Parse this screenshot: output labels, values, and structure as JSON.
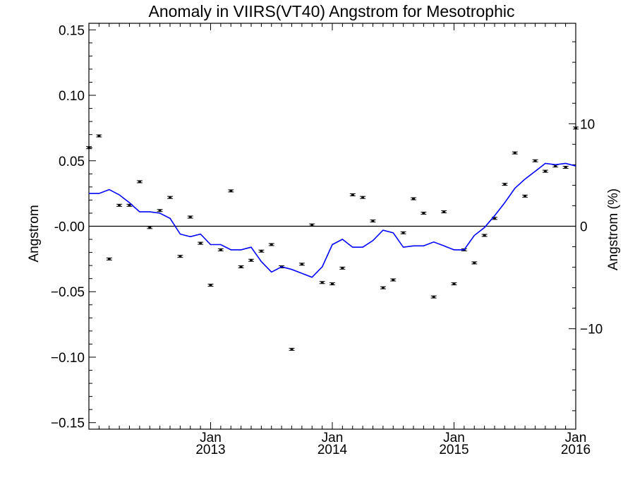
{
  "chart_data": {
    "type": "scatter",
    "title": "Anomaly in VIIRS(VT40) Angstrom for Mesotrophic",
    "ylabel": "Angstrom",
    "ylabel_right": "Angstrom (%)",
    "ylim": [
      -0.155,
      0.155
    ],
    "ylim_right": [
      -19.8,
      19.8
    ],
    "xlim": [
      2012.0,
      2016.0
    ],
    "yticks": [
      {
        "value": 0.15,
        "label": "0.15"
      },
      {
        "value": 0.1,
        "label": "0.10"
      },
      {
        "value": 0.05,
        "label": "0.05"
      },
      {
        "value": 0.0,
        "label": "-0.00"
      },
      {
        "value": -0.05,
        "label": "−0.05"
      },
      {
        "value": -0.1,
        "label": "−0.10"
      },
      {
        "value": -0.15,
        "label": "−0.15"
      }
    ],
    "yticks_right": [
      {
        "value": 10,
        "label": "10"
      },
      {
        "value": 0,
        "label": "0"
      },
      {
        "value": -10,
        "label": "−10"
      }
    ],
    "xticks": [
      {
        "value": 2013.0,
        "month": "Jan",
        "year": "2013"
      },
      {
        "value": 2014.0,
        "month": "Jan",
        "year": "2014"
      },
      {
        "value": 2015.0,
        "month": "Jan",
        "year": "2015"
      },
      {
        "value": 2016.0,
        "month": "Jan",
        "year": "2016"
      }
    ],
    "zero_line": true,
    "series": [
      {
        "kind": "points",
        "color": "#000000",
        "x": [
          2012.0,
          2012.083,
          2012.167,
          2012.25,
          2012.333,
          2012.417,
          2012.5,
          2012.583,
          2012.667,
          2012.75,
          2012.833,
          2012.917,
          2013.0,
          2013.083,
          2013.167,
          2013.25,
          2013.333,
          2013.417,
          2013.5,
          2013.583,
          2013.667,
          2013.75,
          2013.833,
          2013.917,
          2014.0,
          2014.083,
          2014.167,
          2014.25,
          2014.333,
          2014.417,
          2014.5,
          2014.583,
          2014.667,
          2014.75,
          2014.833,
          2014.917,
          2015.0,
          2015.083,
          2015.167,
          2015.25,
          2015.333,
          2015.417,
          2015.5,
          2015.583,
          2015.667,
          2015.75,
          2015.833,
          2015.917,
          2016.0
        ],
        "y": [
          0.06,
          0.069,
          -0.025,
          0.016,
          0.016,
          0.034,
          -0.001,
          0.012,
          0.022,
          -0.023,
          0.007,
          -0.013,
          -0.045,
          -0.018,
          0.027,
          -0.031,
          -0.026,
          -0.019,
          -0.014,
          -0.031,
          -0.094,
          -0.029,
          0.001,
          -0.043,
          -0.044,
          -0.032,
          0.024,
          0.022,
          0.004,
          -0.047,
          -0.041,
          -0.005,
          0.021,
          0.01,
          -0.054,
          0.011,
          -0.044,
          -0.018,
          -0.028,
          -0.007,
          0.006,
          0.032,
          0.056,
          0.023,
          0.05,
          0.042,
          0.046,
          0.045,
          0.075
        ]
      },
      {
        "kind": "line",
        "color": "#0000ff",
        "x": [
          2012.0,
          2012.083,
          2012.167,
          2012.25,
          2012.333,
          2012.417,
          2012.5,
          2012.583,
          2012.667,
          2012.75,
          2012.833,
          2012.917,
          2013.0,
          2013.083,
          2013.167,
          2013.25,
          2013.333,
          2013.417,
          2013.5,
          2013.583,
          2013.667,
          2013.75,
          2013.833,
          2013.917,
          2014.0,
          2014.083,
          2014.167,
          2014.25,
          2014.333,
          2014.417,
          2014.5,
          2014.583,
          2014.667,
          2014.75,
          2014.833,
          2014.917,
          2015.0,
          2015.083,
          2015.167,
          2015.25,
          2015.333,
          2015.417,
          2015.5,
          2015.583,
          2015.667,
          2015.75,
          2015.833,
          2015.917,
          2016.0
        ],
        "y": [
          0.025,
          0.025,
          0.028,
          0.024,
          0.018,
          0.011,
          0.011,
          0.01,
          0.006,
          -0.006,
          -0.008,
          -0.006,
          -0.014,
          -0.014,
          -0.018,
          -0.018,
          -0.016,
          -0.027,
          -0.035,
          -0.031,
          -0.033,
          -0.036,
          -0.039,
          -0.031,
          -0.014,
          -0.01,
          -0.016,
          -0.016,
          -0.011,
          -0.003,
          -0.005,
          -0.016,
          -0.015,
          -0.015,
          -0.012,
          -0.015,
          -0.018,
          -0.018,
          -0.007,
          -0.001,
          0.008,
          0.018,
          0.029,
          0.036,
          0.042,
          0.048,
          0.047,
          0.048,
          0.046
        ]
      }
    ]
  }
}
